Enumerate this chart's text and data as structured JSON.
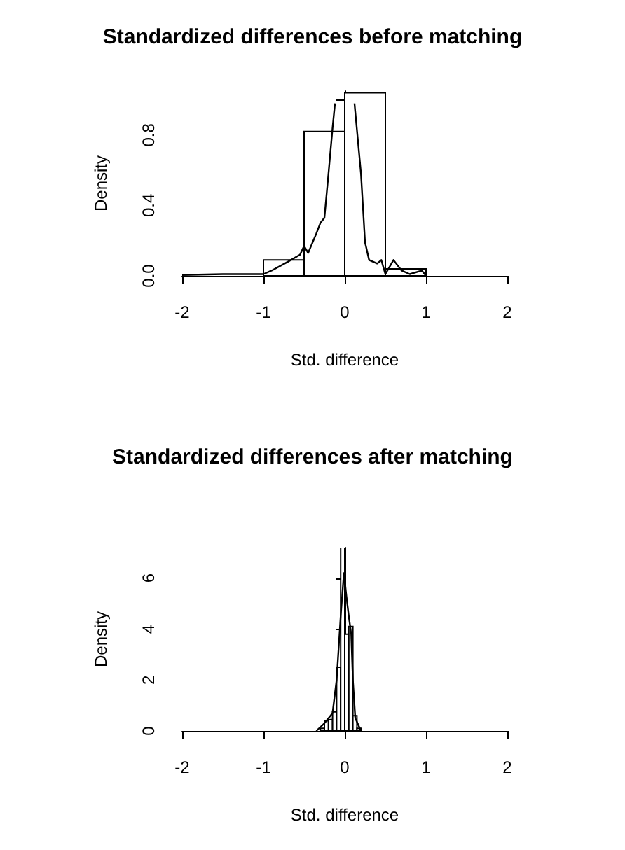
{
  "chart_data": [
    {
      "type": "histogram",
      "title": "Standardized differences before matching",
      "xlabel": "Std. difference",
      "ylabel": "Density",
      "color": "#000000",
      "bins": [
        -1,
        -0.5,
        0,
        0.5,
        1
      ],
      "values": [
        0.09,
        0.82,
        1.04,
        0.04
      ],
      "xlim": [
        -2,
        2
      ],
      "xticks": [
        -2,
        -1,
        0,
        1,
        2
      ],
      "ylim": [
        0,
        1.05
      ],
      "yticks": [
        {
          "value": 0,
          "label": "0.0"
        },
        {
          "value": 0.2,
          "label": null
        },
        {
          "value": 0.4,
          "label": "0.4"
        },
        {
          "value": 0.6,
          "label": null
        },
        {
          "value": 0.8,
          "label": "0.8"
        },
        {
          "value": 1.0,
          "label": null
        }
      ],
      "series": [
        {
          "type": "line",
          "color": "#000000",
          "x": [
            -2,
            -1.5,
            -1,
            -0.9,
            -0.7,
            -0.55,
            -0.5,
            -0.45,
            -0.35,
            -0.3,
            -0.25,
            -0.2,
            -0.15,
            -0.12,
            0,
            0.12,
            0.2,
            0.25,
            0.3,
            0.4,
            0.45,
            0.5,
            0.6,
            0.7,
            0.8,
            0.95,
            1.0
          ],
          "values": [
            0.005,
            0.01,
            0.01,
            0.03,
            0.08,
            0.12,
            0.17,
            0.13,
            0.24,
            0.3,
            0.33,
            0.58,
            0.84,
            0.98,
            null,
            0.98,
            0.58,
            0.19,
            0.09,
            0.07,
            0.09,
            0.01,
            0.09,
            0.03,
            0.01,
            0.03,
            0.0
          ]
        }
      ]
    },
    {
      "type": "histogram",
      "title": "Standardized differences after matching",
      "xlabel": "Std. difference",
      "ylabel": "Density",
      "color": "#000000",
      "bins": [
        -0.35,
        -0.3,
        -0.25,
        -0.2,
        -0.15,
        -0.1,
        -0.05,
        0,
        0.05,
        0.1,
        0.15,
        0.2
      ],
      "values": [
        null,
        0.1,
        0.4,
        0.45,
        0.75,
        2.5,
        7.2,
        3.8,
        4.1,
        0.6,
        0.1
      ],
      "xlim": [
        -2,
        2
      ],
      "xticks": [
        -2,
        -1,
        0,
        1,
        2
      ],
      "ylim": [
        0,
        7.2
      ],
      "yticks": [
        0,
        2,
        4,
        6
      ],
      "series": [
        {
          "type": "line",
          "color": "#000000",
          "x": [
            -0.35,
            -0.25,
            -0.15,
            -0.1,
            -0.05,
            -0.01,
            0.02,
            0.05,
            0.08,
            0.1,
            0.13,
            0.2
          ],
          "values": [
            0,
            0.3,
            0.7,
            2.0,
            4.5,
            6.2,
            5.3,
            4.5,
            3.8,
            2.0,
            0.5,
            0
          ]
        }
      ]
    }
  ]
}
